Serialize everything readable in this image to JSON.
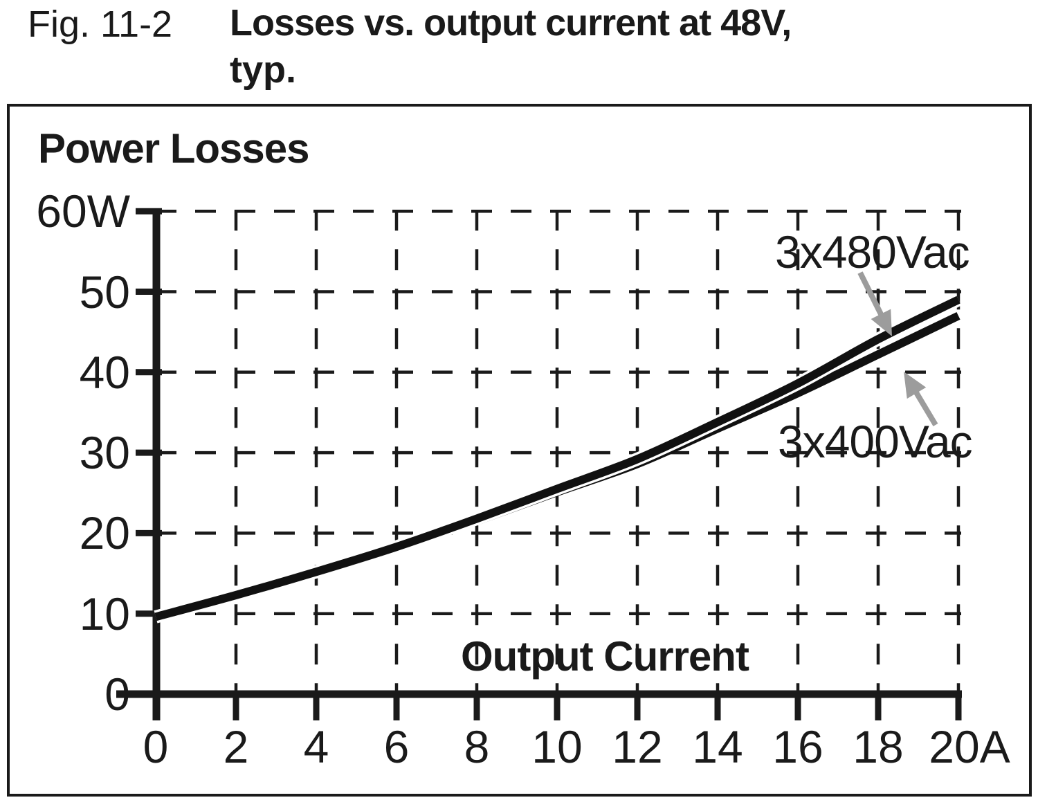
{
  "figure": {
    "fig_label": "Fig. 11-2",
    "title_line1": "Losses vs. output current at 48V,",
    "title_line2": "typ."
  },
  "chart": {
    "ylabel": "Power Losses",
    "xlabel": "Output Current",
    "y_tick_labels": [
      "60W",
      "50",
      "40",
      "30",
      "20",
      "10",
      "0"
    ],
    "x_tick_labels": [
      "0",
      "2",
      "4",
      "6",
      "8",
      "10",
      "12",
      "14",
      "16",
      "18",
      "20A"
    ]
  },
  "chart_data": {
    "type": "line",
    "title": "Losses vs. output current at 48V, typ.",
    "xlabel": "Output Current (A)",
    "ylabel": "Power Losses (W)",
    "xlim": [
      0,
      20
    ],
    "ylim": [
      0,
      60
    ],
    "grid": true,
    "grid_style": "dashed",
    "x": [
      0,
      2,
      4,
      6,
      8,
      10,
      12,
      14,
      16,
      18,
      20
    ],
    "series": [
      {
        "name": "3x480Vac",
        "values": [
          9.6,
          12.3,
          15.2,
          18.3,
          21.8,
          25.5,
          29.2,
          33.8,
          38.6,
          44.1,
          49.0
        ]
      },
      {
        "name": "3x400Vac",
        "values": [
          9.4,
          12.1,
          15.0,
          18.1,
          21.5,
          25.1,
          28.6,
          33.0,
          37.4,
          42.2,
          47.0
        ]
      }
    ],
    "legend_position": "annotated-arrows"
  },
  "colors": {
    "curve": "#111111",
    "grid": "#1a1a1a",
    "frame": "#1a1a1a",
    "arrow": "#9c9c9c",
    "background": "#ffffff"
  }
}
